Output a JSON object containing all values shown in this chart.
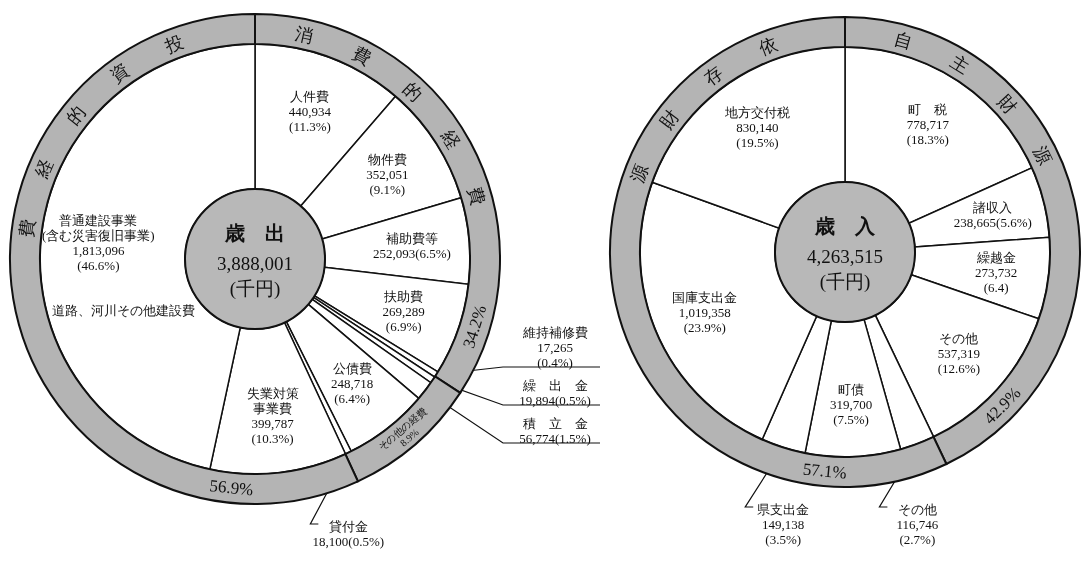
{
  "chart_data": [
    {
      "type": "donut",
      "title": "歳　出",
      "subtitle": "3,888,001\n(千円)",
      "annotations": [
        "道路、河川その他建設費"
      ],
      "categories": [
        "人件費",
        "物件費",
        "補助費等",
        "扶助費",
        "維持補修費",
        "繰　出　金",
        "積　立　金",
        "公債費",
        "貸付金",
        "失業対策事業費",
        "普通建設事業(含む災害復旧事業)"
      ],
      "values": [
        440934,
        352051,
        252093,
        269289,
        17265,
        19894,
        56774,
        248718,
        18100,
        399787,
        1813096
      ],
      "colors": [
        "#ffffff",
        "#ffffff",
        "#ffffff",
        "#ffffff",
        "#ffffff",
        "#ffffff",
        "#ffffff",
        "#ffffff",
        "#ffffff",
        "#ffffff",
        "#ffffff"
      ],
      "value_labels": [
        "440,934\n(11.3%)",
        "352,051\n(9.1%)",
        "252,093(6.5%)",
        "269,289\n(6.9%)",
        "17,265\n(0.4%)",
        "19,894(0.5%)",
        "56,774(1.5%)",
        "248,718\n(6.4%)",
        "18,100(0.5%)",
        "399,787\n(10.3%)",
        "1,813,096\n(46.6%)"
      ]
    },
    {
      "type": "donut",
      "categories": [
        "消費的経費",
        "その他の経費",
        "投資的経費"
      ],
      "values": [
        34.2,
        8.9,
        56.9
      ],
      "colors": [
        "#b4b4b4",
        "#b4b4b4",
        "#b4b4b4"
      ],
      "value_labels": [
        "34.2%",
        "8.9%",
        "56.9%"
      ]
    },
    {
      "type": "donut",
      "title": "歳　入",
      "subtitle": "4,263,515\n(千円)",
      "categories": [
        "町　税",
        "諸収入",
        "繰越金",
        "その他",
        "その他",
        "町債",
        "県支出金",
        "国庫支出金",
        "地方交付税"
      ],
      "values": [
        778717,
        238665,
        273732,
        537319,
        116746,
        319700,
        149138,
        1019358,
        830140
      ],
      "colors": [
        "#ffffff",
        "#ffffff",
        "#ffffff",
        "#ffffff",
        "#ffffff",
        "#ffffff",
        "#ffffff",
        "#ffffff",
        "#ffffff"
      ],
      "value_labels": [
        "778,717\n(18.3%)",
        "238,665(5.6%)",
        "273,732\n(6.4)",
        "537,319\n(12.6%)",
        "116,746\n(2.7%)",
        "319,700\n(7.5%)",
        "149,138\n(3.5%)",
        "1,019,358\n(23.9%)",
        "830,140\n(19.5%)"
      ]
    },
    {
      "type": "donut",
      "categories": [
        "自主財源",
        "依存財源"
      ],
      "values": [
        42.9,
        57.1
      ],
      "colors": [
        "#b4b4b4",
        "#b4b4b4"
      ],
      "value_labels": [
        "42.9%",
        "57.1%"
      ]
    }
  ]
}
